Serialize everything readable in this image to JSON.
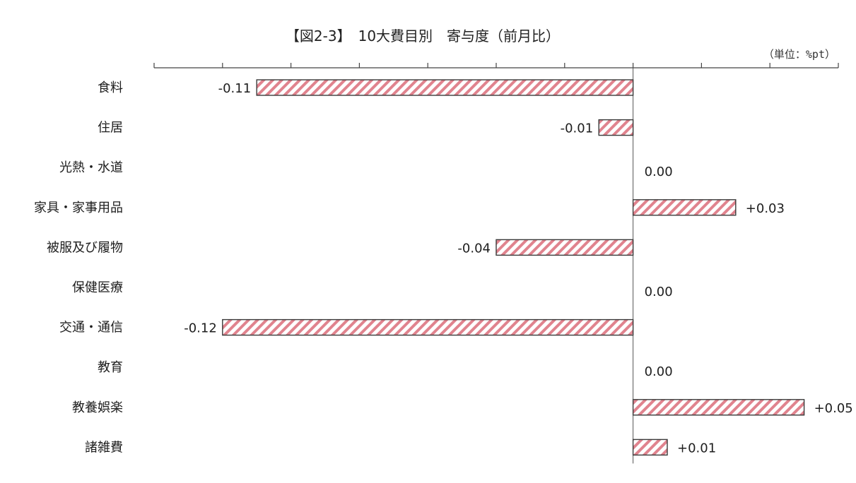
{
  "chart_data": {
    "type": "bar",
    "orientation": "horizontal",
    "title": "【図2-3】　10大費目別　寄与度（前月比）",
    "unit": "（単位：%pt）",
    "categories": [
      "食料",
      "住居",
      "光熱・水道",
      "家具・家事用品",
      "被服及び履物",
      "保健医療",
      "交通・通信",
      "教育",
      "教養娯楽",
      "諸雑費"
    ],
    "values": [
      -0.11,
      -0.01,
      0.0,
      0.03,
      -0.04,
      0.0,
      -0.12,
      0.0,
      0.05,
      0.01
    ],
    "value_labels": [
      "-0.11",
      "-0.01",
      "0.00",
      "+0.03",
      "-0.04",
      "0.00",
      "-0.12",
      "0.00",
      "+0.05",
      "+0.01"
    ],
    "xlim": [
      -0.14,
      0.06
    ],
    "tick_step": 0.02,
    "grid": false,
    "legend": "none",
    "colors": {
      "bar_stroke": "#3a3a3a",
      "hatch": "#e0838e"
    }
  }
}
